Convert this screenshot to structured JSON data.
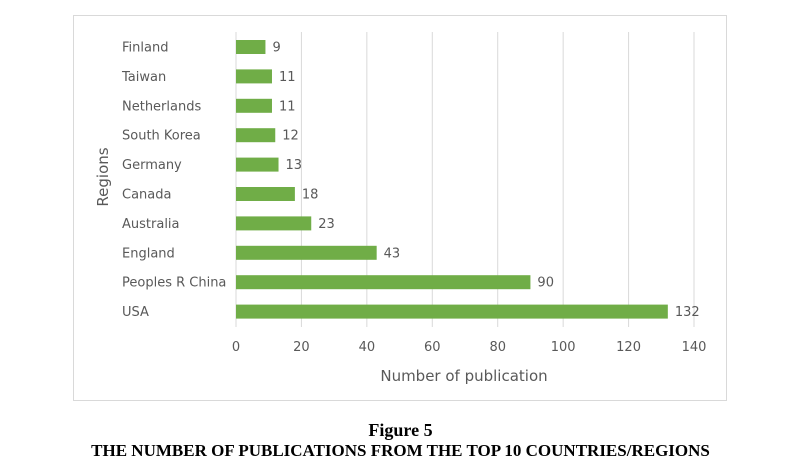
{
  "caption": {
    "figure_number": "Figure 5",
    "figure_title": "THE NUMBER OF PUBLICATIONS FROM THE TOP 10 COUNTRIES/REGIONS"
  },
  "chart_data": {
    "type": "bar",
    "orientation": "horizontal",
    "categories": [
      "Finland",
      "Taiwan",
      "Netherlands",
      "South Korea",
      "Germany",
      "Canada",
      "Australia",
      "England",
      "Peoples R China",
      "USA"
    ],
    "values": [
      9,
      11,
      11,
      12,
      13,
      18,
      23,
      43,
      90,
      132
    ],
    "data_labels": [
      "9",
      "11",
      "11",
      "12",
      "13",
      "18",
      "23",
      "43",
      "90",
      "132"
    ],
    "xlabel": "Number of publication",
    "ylabel": "Regions",
    "xlim": [
      0,
      140
    ],
    "x_ticks": [
      0,
      20,
      40,
      60,
      80,
      100,
      120,
      140
    ],
    "grid": "vertical",
    "legend": "none",
    "colors": {
      "bar": "#70ad47",
      "grid": "#d9d9d9",
      "text": "#595959"
    }
  }
}
